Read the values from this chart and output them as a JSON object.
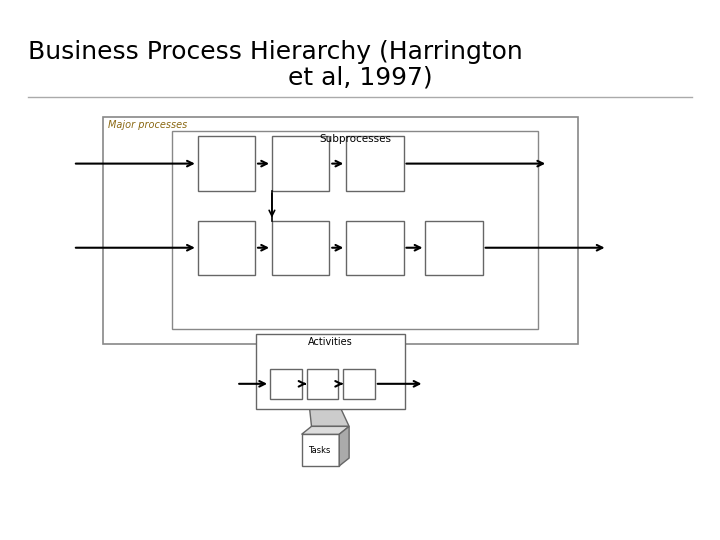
{
  "title_line1": "Business Process Hierarchy (Harrington",
  "title_line2": "et al, 1997)",
  "title_fontsize": 18,
  "title_color": "#000000",
  "bg_color": "#ffffff",
  "major_label": "Major processes",
  "subprocess_label": "Subprocesses",
  "activities_label": "Activities",
  "tasks_label": "Tasks",
  "label_color_major": "#8B6914",
  "label_color_sub": "#000000",
  "label_color_act": "#000000",
  "box_edge_color": "#555555",
  "funnel_color": "#cccccc",
  "tasks_3d_side": "#aaaaaa",
  "tasks_3d_top": "#dddddd"
}
